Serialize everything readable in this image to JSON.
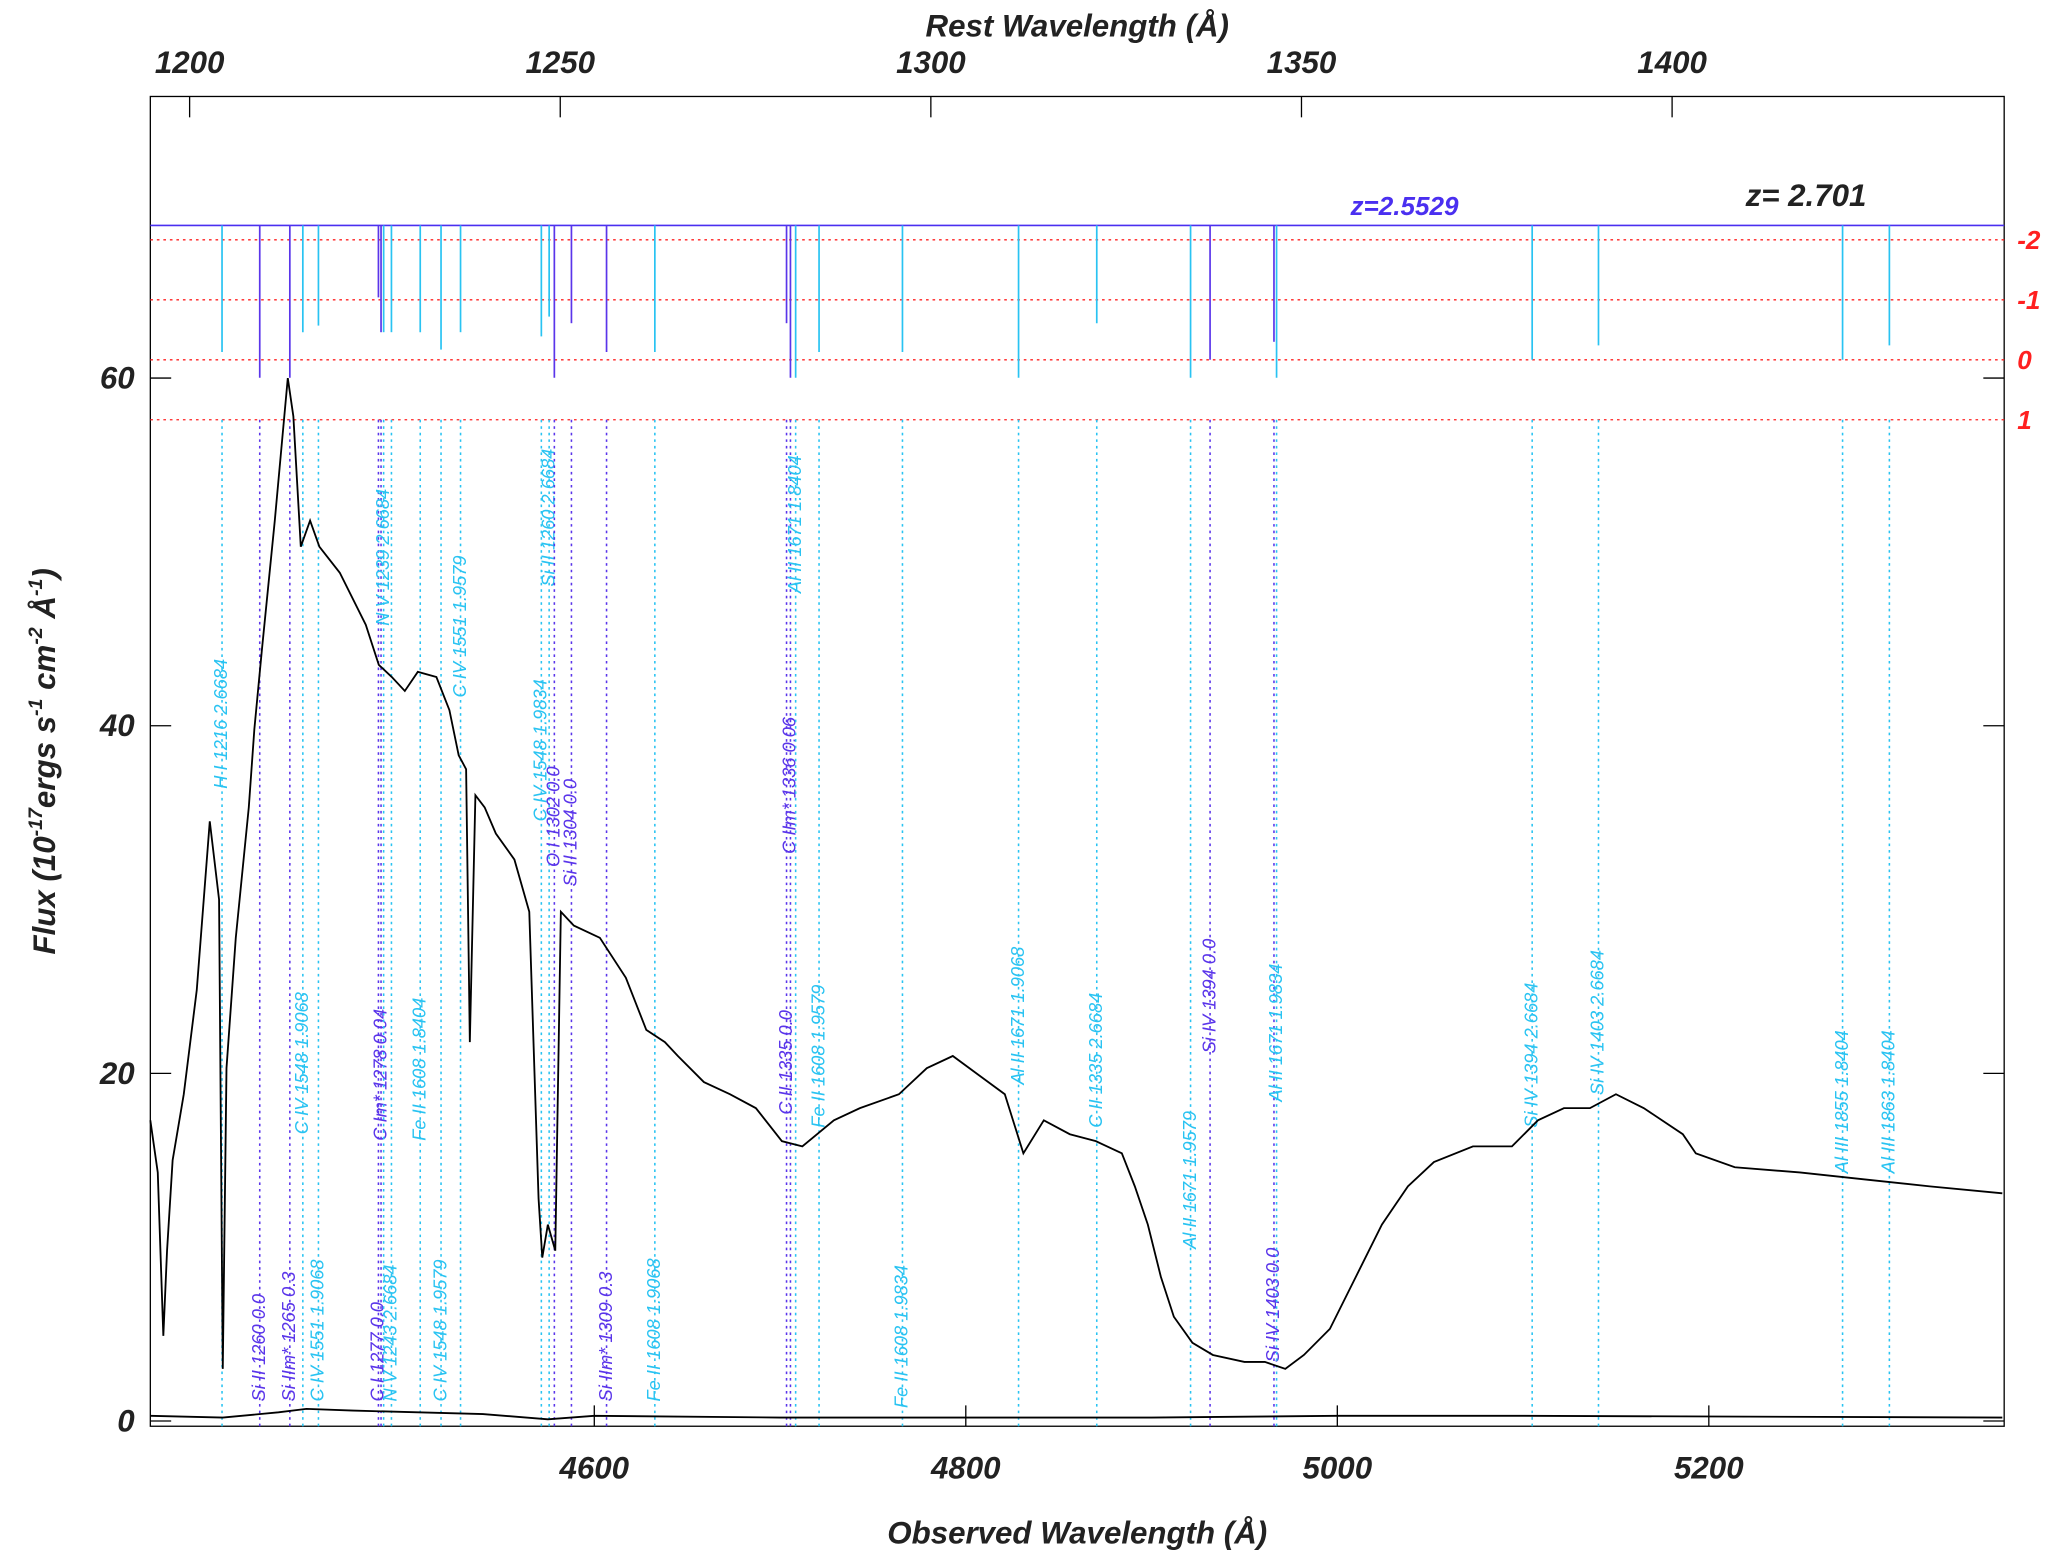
{
  "chart_data": {
    "type": "spectrum",
    "xlabel": "Observed Wavelength (Å)",
    "x2label": "Rest Wavelength (Å)",
    "ylabel": [
      "Flux (10",
      "-17",
      "ergs s",
      "-1",
      " cm",
      "-2",
      " Å",
      "-1",
      ")"
    ],
    "annotation": "z= 2.701",
    "xlim": [
      4361,
      5359
    ],
    "xticks": [
      4600,
      4800,
      5000,
      5200
    ],
    "x2lim": [
      1194.7,
      1444.8
    ],
    "x2ticks": [
      1200,
      1250,
      1300,
      1350,
      1400
    ],
    "ylim": [
      -0.3,
      76.2
    ],
    "yticks": [
      0,
      20,
      40,
      60
    ],
    "y2lim": [
      17.78,
      -4.39
    ],
    "y2ticks": [
      -2,
      -1,
      0,
      1
    ],
    "y2color": "#ff2020",
    "y2grid": true,
    "reference": {
      "label": "z=2.5529",
      "y2": -2.24,
      "color": "#4a2ff0"
    },
    "series": [
      {
        "color": "#000000",
        "x": [
          4361,
          4365,
          4368,
          4370,
          4373,
          4379,
          4386,
          4393,
          4398,
          4400,
          4402,
          4407,
          4414,
          4417,
          4421,
          4428,
          4435,
          4438,
          4442,
          4447,
          4452,
          4463,
          4477,
          4484,
          4491,
          4498,
          4505,
          4515,
          4522,
          4527,
          4531,
          4533,
          4536,
          4541,
          4547,
          4557,
          4565,
          4570,
          4572,
          4575,
          4579,
          4582,
          4589,
          4603,
          4617,
          4628,
          4638,
          4645,
          4659,
          4673,
          4687,
          4701,
          4712,
          4729,
          4743,
          4764,
          4779,
          4793,
          4807,
          4821,
          4831,
          4842,
          4856,
          4870,
          4884,
          4891,
          4898,
          4905,
          4912,
          4922,
          4933,
          4950,
          4961,
          4972,
          4982,
          4996,
          5010,
          5024,
          5038,
          5052,
          5073,
          5094,
          5108,
          5122,
          5136,
          5150,
          5165,
          5186,
          5193,
          5214,
          5249,
          5284,
          5319,
          5358
        ],
        "values": [
          17.3,
          14.3,
          4.9,
          9.8,
          15.0,
          18.8,
          24.8,
          34.5,
          30.0,
          3.0,
          20.3,
          27.8,
          35.3,
          39.8,
          44.3,
          51.8,
          60.0,
          57.8,
          50.3,
          51.8,
          50.3,
          48.8,
          45.8,
          43.5,
          42.8,
          42.0,
          43.1,
          42.8,
          40.9,
          38.3,
          37.5,
          21.8,
          36.0,
          35.3,
          33.8,
          32.3,
          29.3,
          12.8,
          9.4,
          11.3,
          9.8,
          29.3,
          28.5,
          27.8,
          25.5,
          22.5,
          21.8,
          21.0,
          19.5,
          18.8,
          18.0,
          16.1,
          15.8,
          17.3,
          18.0,
          18.8,
          20.3,
          21.0,
          19.9,
          18.8,
          15.4,
          17.3,
          16.5,
          16.1,
          15.4,
          13.5,
          11.3,
          8.3,
          6.0,
          4.5,
          3.8,
          3.4,
          3.4,
          3.0,
          3.8,
          5.3,
          8.3,
          11.3,
          13.5,
          14.9,
          15.8,
          15.8,
          17.3,
          18.0,
          18.0,
          18.8,
          18.0,
          16.5,
          15.4,
          14.6,
          14.3,
          13.9,
          13.5,
          13.1
        ]
      },
      {
        "color": "#000000",
        "x": [
          4361,
          4400,
          4430,
          4445,
          4470,
          4540,
          4575,
          4600,
          4700,
          4900,
          5000,
          5100,
          5358
        ],
        "values": [
          0.3,
          0.2,
          0.5,
          0.7,
          0.6,
          0.4,
          0.1,
          0.3,
          0.2,
          0.2,
          0.3,
          0.3,
          0.2
        ]
      }
    ],
    "lines": [
      {
        "label": "H I 1216 2.6684",
        "x": 4399.6,
        "tick": -0.13,
        "color": "#29c3f2"
      },
      {
        "label": "Si II 1260 0.0",
        "x": 4419.9,
        "tick": 0.3,
        "color": "#5a35ea"
      },
      {
        "label": "Si IIm* 1265 0.3",
        "x": 4436.1,
        "tick": 0.3,
        "color": "#5a35ea"
      },
      {
        "label": "C IV 1548 1.9068",
        "x": 4443.1,
        "tick": -0.46,
        "color": "#29c3f2"
      },
      {
        "label": "C IV 1551 1.9068",
        "x": 4451.5,
        "tick": -0.57,
        "color": "#29c3f2"
      },
      {
        "label": "C I 1277 0.0",
        "x": 4483.8,
        "tick": -1.04,
        "color": "#5a35ea"
      },
      {
        "label": "C Im* 1278 0.04",
        "x": 4485.2,
        "tick": -0.46,
        "color": "#5a35ea"
      },
      {
        "label": "N V 1239 2.6684",
        "x": 4486.6,
        "tick": -0.46,
        "color": "#29c3f2"
      },
      {
        "label": "N V 1243 2.6684",
        "x": 4490.8,
        "tick": -0.46,
        "color": "#29c3f2"
      },
      {
        "label": "Fe II 1608 1.8404",
        "x": 4506.3,
        "tick": -0.46,
        "color": "#29c3f2"
      },
      {
        "label": "C IV 1548 1.9579",
        "x": 4517.5,
        "tick": -0.17,
        "color": "#29c3f2"
      },
      {
        "label": "C IV 1551 1.9579",
        "x": 4528.0,
        "tick": -0.46,
        "color": "#29c3f2"
      },
      {
        "label": "C IV 1548 1.9834",
        "x": 4571.5,
        "tick": -0.39,
        "color": "#29c3f2"
      },
      {
        "label": "Si II 1260 2.6684",
        "x": 4575.7,
        "tick": -0.72,
        "color": "#29c3f2"
      },
      {
        "label": "O I 1302 0.0",
        "x": 4578.5,
        "tick": 0.3,
        "color": "#5a35ea"
      },
      {
        "label": "Si II 1304 0.0",
        "x": 4587.7,
        "tick": -0.61,
        "color": "#5a35ea"
      },
      {
        "label": "Si IIm* 1309 0.3",
        "x": 4606.6,
        "tick": -0.13,
        "color": "#5a35ea"
      },
      {
        "label": "Fe II 1608 1.9068",
        "x": 4632.6,
        "tick": -0.13,
        "color": "#29c3f2"
      },
      {
        "label": "C II 1335 0.0",
        "x": 4703.5,
        "tick": -0.61,
        "color": "#5a35ea"
      },
      {
        "label": "C IIm* 1336 0.06",
        "x": 4705.6,
        "tick": 0.3,
        "color": "#5a35ea"
      },
      {
        "label": "Al II 1671 1.8404",
        "x": 4708.4,
        "tick": 0.3,
        "color": "#29c3f2"
      },
      {
        "label": "Fe II 1608 1.9579",
        "x": 4721.0,
        "tick": -0.13,
        "color": "#29c3f2"
      },
      {
        "label": "Fe II 1608 1.9834",
        "x": 4765.9,
        "tick": -0.13,
        "color": "#29c3f2"
      },
      {
        "label": "Al II 1671 1.9068",
        "x": 4828.4,
        "tick": 0.3,
        "color": "#29c3f2"
      },
      {
        "label": "C II 1335 2.6684",
        "x": 4870.5,
        "tick": -0.61,
        "color": "#29c3f2"
      },
      {
        "label": "Al II 1671 1.9579",
        "x": 4921.0,
        "tick": 0.3,
        "color": "#29c3f2"
      },
      {
        "label": "Si IV 1394 0.0",
        "x": 4931.5,
        "tick": 0.0,
        "color": "#5a35ea"
      },
      {
        "label": "Si IV 1403 0.0",
        "x": 4965.9,
        "tick": -0.3,
        "color": "#5a35ea"
      },
      {
        "label": "Al II 1671 1.9834",
        "x": 4967.3,
        "tick": 0.3,
        "color": "#29c3f2"
      },
      {
        "label": "Si IV 1394 2.6684",
        "x": 5104.9,
        "tick": 0.0,
        "color": "#29c3f2"
      },
      {
        "label": "Si IV 1403 2.6684",
        "x": 5140.6,
        "tick": -0.24,
        "color": "#29c3f2"
      },
      {
        "label": "Al III 1855 1.8404",
        "x": 5272.0,
        "tick": 0.0,
        "color": "#29c3f2"
      },
      {
        "label": "Al III 1863 1.8404",
        "x": 5297.2,
        "tick": -0.24,
        "color": "#29c3f2"
      }
    ]
  }
}
